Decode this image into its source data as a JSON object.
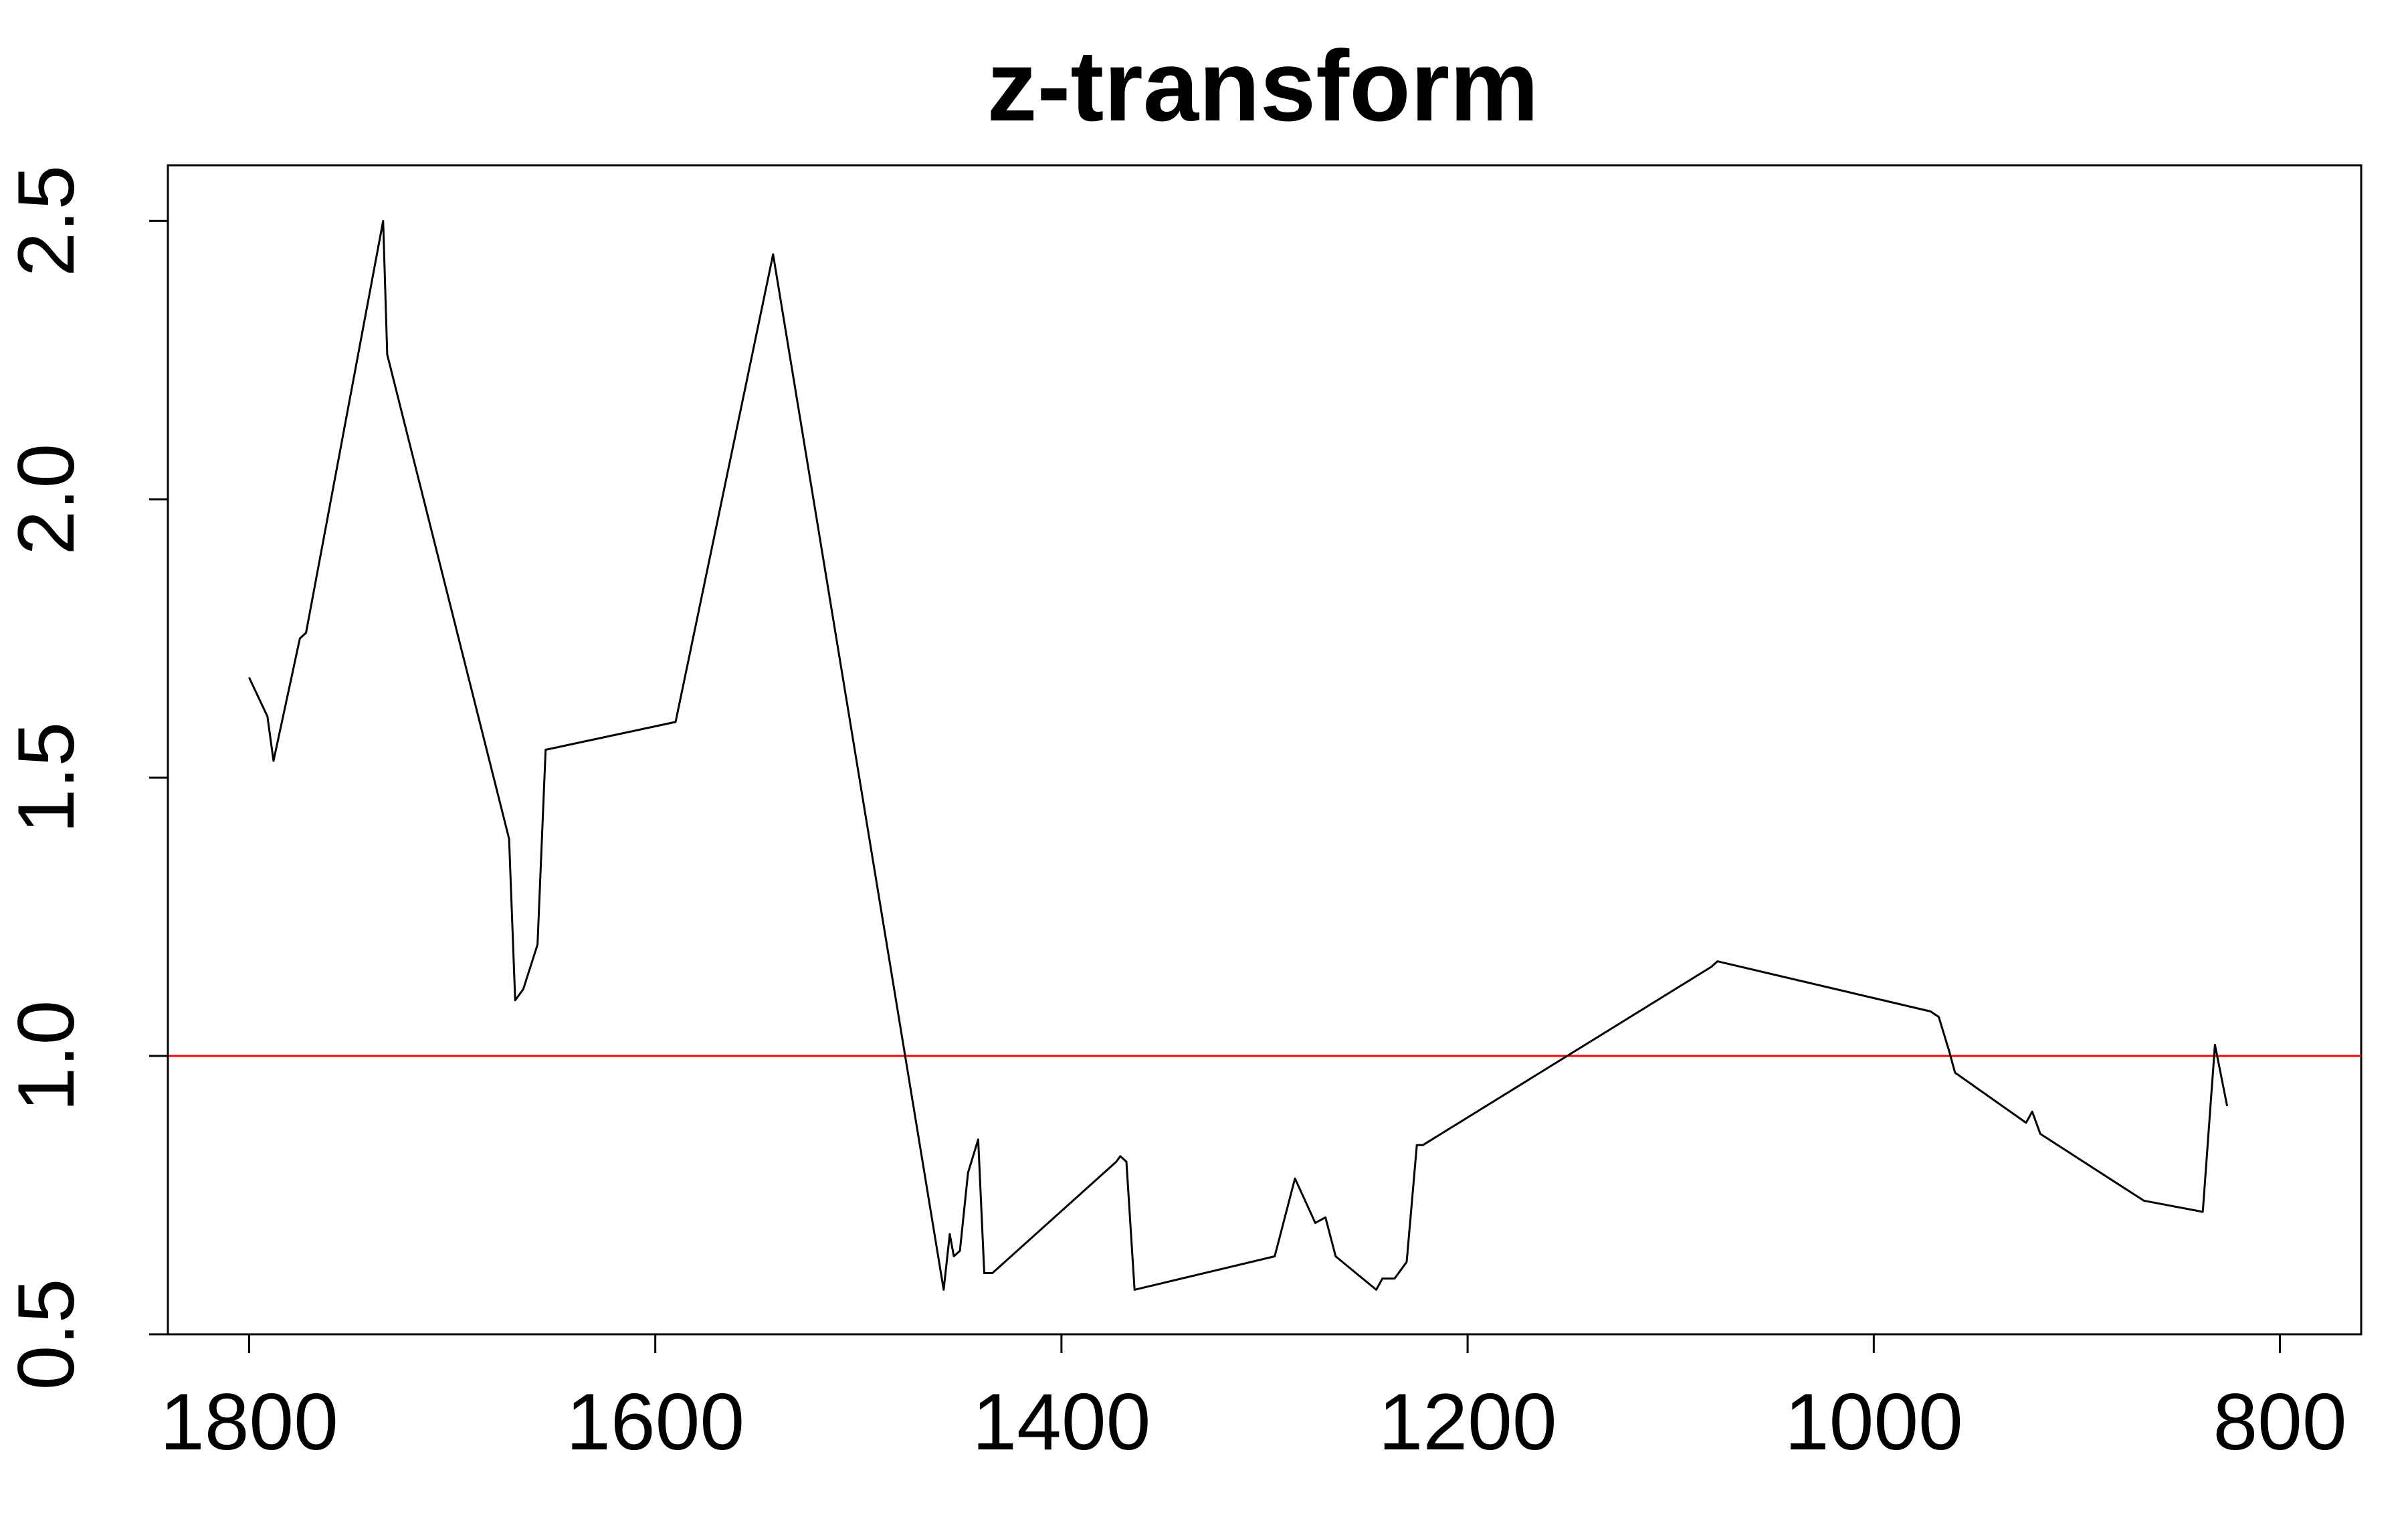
{
  "chart_data": {
    "type": "line",
    "title": "z-transform",
    "xlabel": "",
    "ylabel": "",
    "xlim": [
      1840,
      760
    ],
    "ylim": [
      0.5,
      2.6
    ],
    "x_ticks": [
      1800,
      1600,
      1400,
      1200,
      1000,
      800
    ],
    "x_tick_labels": [
      "1800",
      "1600",
      "1400",
      "1200",
      "1000",
      "800"
    ],
    "y_ticks": [
      0.5,
      1.0,
      1.5,
      2.0,
      2.5
    ],
    "y_tick_labels": [
      "0.5",
      "1.0",
      "1.5",
      "2.0",
      "2.5"
    ],
    "grid": false,
    "reference_line": {
      "y": 1.0,
      "color": "#ff0000"
    },
    "series": [
      {
        "color": "#000000",
        "x": [
          1800,
          1791,
          1788,
          1775,
          1772,
          1734,
          1732,
          1672,
          1669,
          1665,
          1658,
          1654,
          1590,
          1542,
          1458,
          1455,
          1453,
          1450,
          1446,
          1441,
          1438,
          1434,
          1373,
          1371,
          1368,
          1364,
          1295,
          1285,
          1275,
          1270,
          1265,
          1245,
          1242,
          1236,
          1230,
          1225,
          1222,
          1080,
          1077,
          972,
          968,
          963,
          960,
          925,
          922,
          918,
          867,
          838,
          834,
          832,
          826
        ],
        "y": [
          1.68,
          1.61,
          1.53,
          1.75,
          1.76,
          2.5,
          2.26,
          1.39,
          1.1,
          1.12,
          1.2,
          1.55,
          1.6,
          2.44,
          0.58,
          0.68,
          0.64,
          0.65,
          0.79,
          0.85,
          0.61,
          0.61,
          0.81,
          0.82,
          0.81,
          0.58,
          0.64,
          0.78,
          0.7,
          0.71,
          0.64,
          0.58,
          0.6,
          0.6,
          0.63,
          0.84,
          0.84,
          1.16,
          1.17,
          1.08,
          1.07,
          1.01,
          0.97,
          0.88,
          0.9,
          0.86,
          0.74,
          0.72,
          0.92,
          1.02,
          0.91
        ]
      }
    ]
  }
}
